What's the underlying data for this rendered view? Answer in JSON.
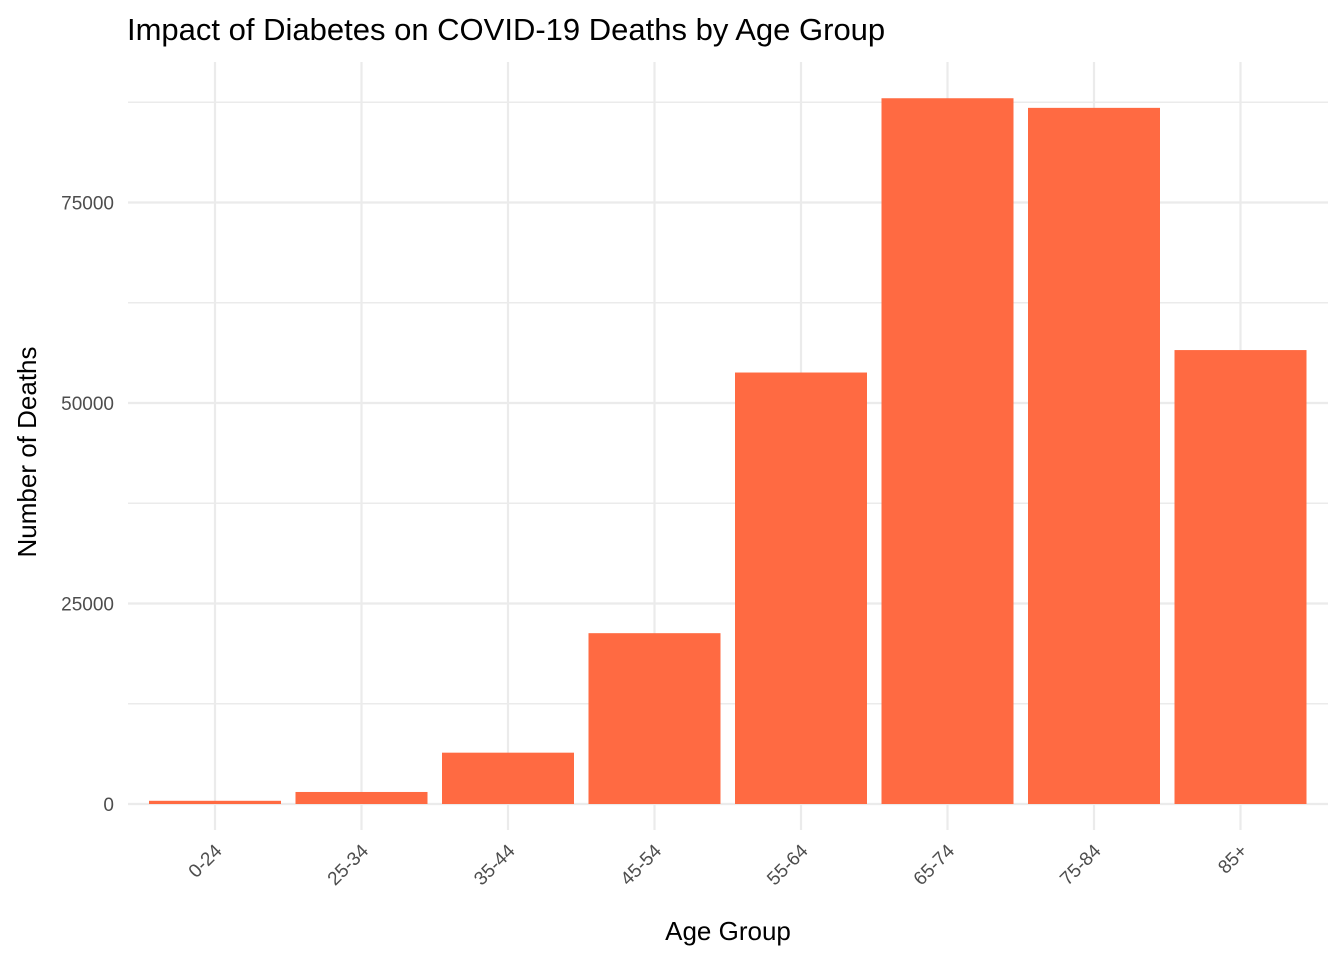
{
  "chart_data": {
    "type": "bar",
    "title": "Impact of Diabetes on COVID-19 Deaths by Age Group",
    "xlabel": "Age Group",
    "ylabel": "Number of Deaths",
    "categories": [
      "0-24",
      "25-34",
      "35-44",
      "45-54",
      "55-64",
      "65-74",
      "75-84",
      "85+"
    ],
    "values": [
      400,
      1500,
      6400,
      21300,
      53800,
      88000,
      86800,
      56600
    ],
    "ylim": [
      0,
      88000
    ],
    "yticks": [
      0,
      25000,
      50000,
      75000
    ],
    "yticks_minor": [
      12500,
      37500,
      62500,
      87500
    ],
    "bar_color": "#ff6a42",
    "grid": true,
    "legend": "none",
    "xtick_rotation": "45 degrees"
  }
}
